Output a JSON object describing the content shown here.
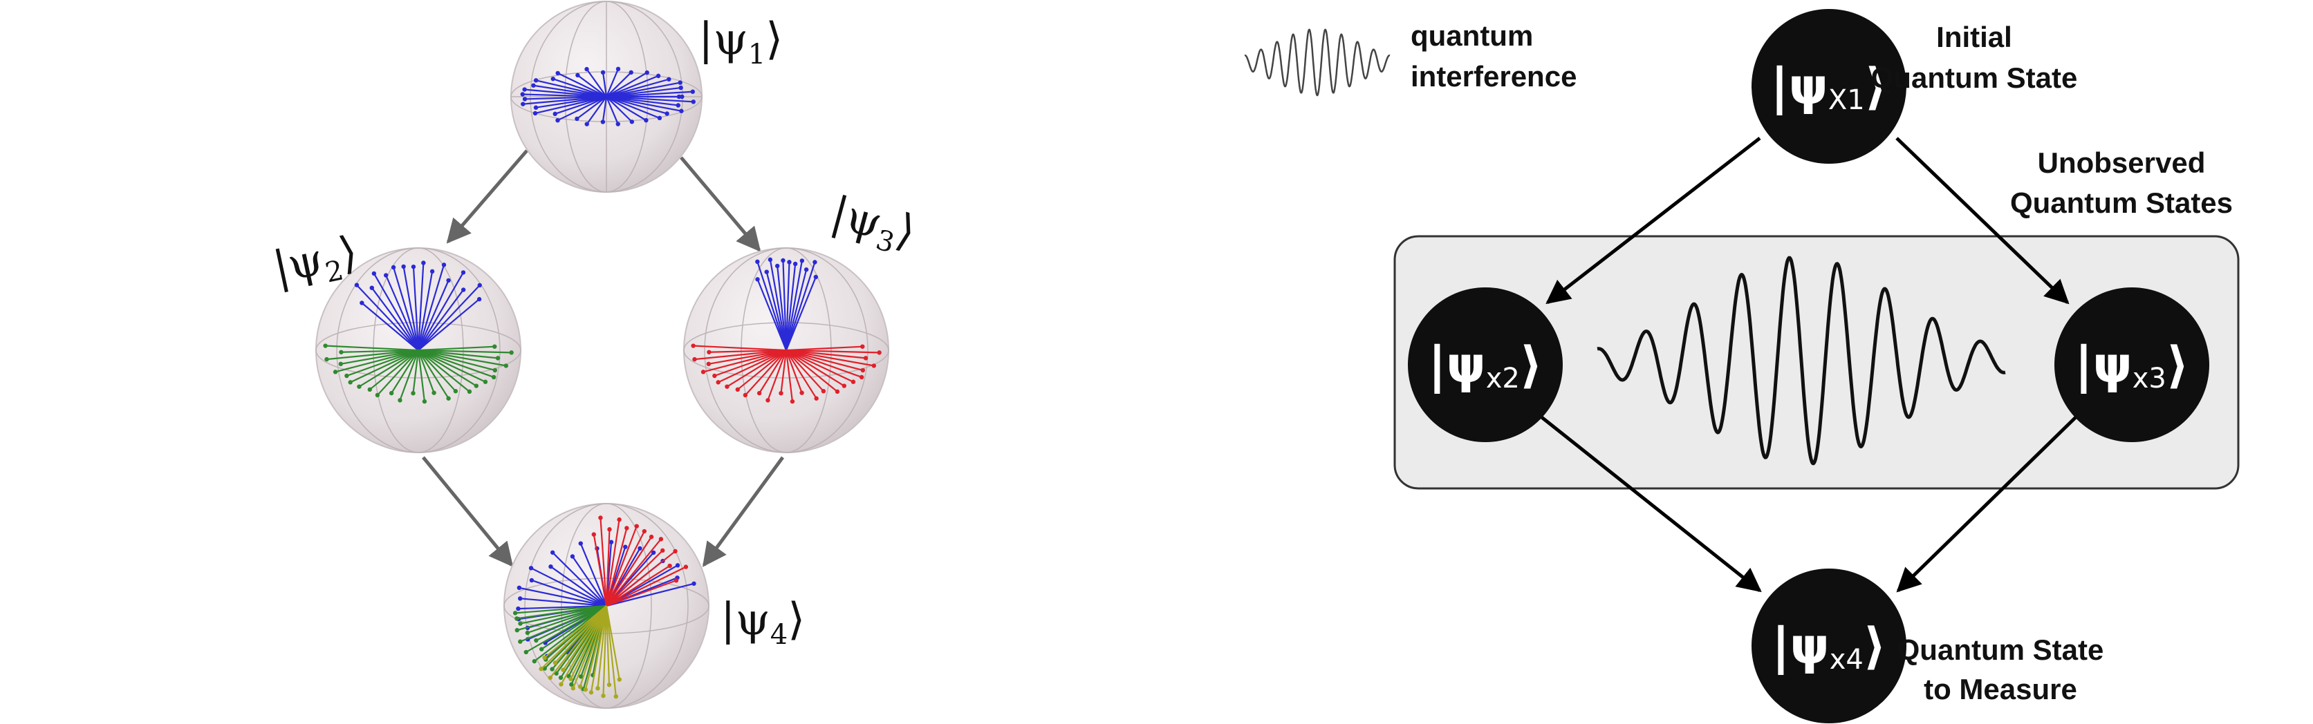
{
  "colors": {
    "vector_blue": "#2a2ad6",
    "vector_green": "#2f8a2f",
    "vector_red": "#e0202a",
    "vector_yellow": "#a8a820",
    "sphere_fill": "#e9e2e4",
    "node_fill": "#0f0f0f",
    "region_fill": "#ebebeb",
    "arrow_gray": "#666666"
  },
  "left_diagram": {
    "psi1": {
      "base": "|ψ",
      "sub": "1",
      "close": "⟩"
    },
    "psi2": {
      "base": "|ψ",
      "sub": "2",
      "close": "⟩"
    },
    "psi3": {
      "base": "|ψ",
      "sub": "3",
      "close": "⟩"
    },
    "psi4": {
      "base": "|ψ",
      "sub": "4",
      "close": "⟩"
    }
  },
  "right_diagram": {
    "legend": {
      "icon": "wave-icon",
      "line1": "quantum",
      "line2": "interference"
    },
    "nodes": [
      {
        "base": "|ψ",
        "sub": "X1",
        "close": "⟩"
      },
      {
        "base": "|ψ",
        "sub": "x2",
        "close": "⟩"
      },
      {
        "base": "|ψ",
        "sub": "x3",
        "close": "⟩"
      },
      {
        "base": "|ψ",
        "sub": "x4",
        "close": "⟩"
      }
    ],
    "labels": {
      "initial_line1": "Initial",
      "initial_line2": "Quantum State",
      "unobserved_line1": "Unobserved",
      "unobserved_line2": "Quantum States",
      "measure_line1": "Quantum State",
      "measure_line2": "to Measure"
    }
  }
}
